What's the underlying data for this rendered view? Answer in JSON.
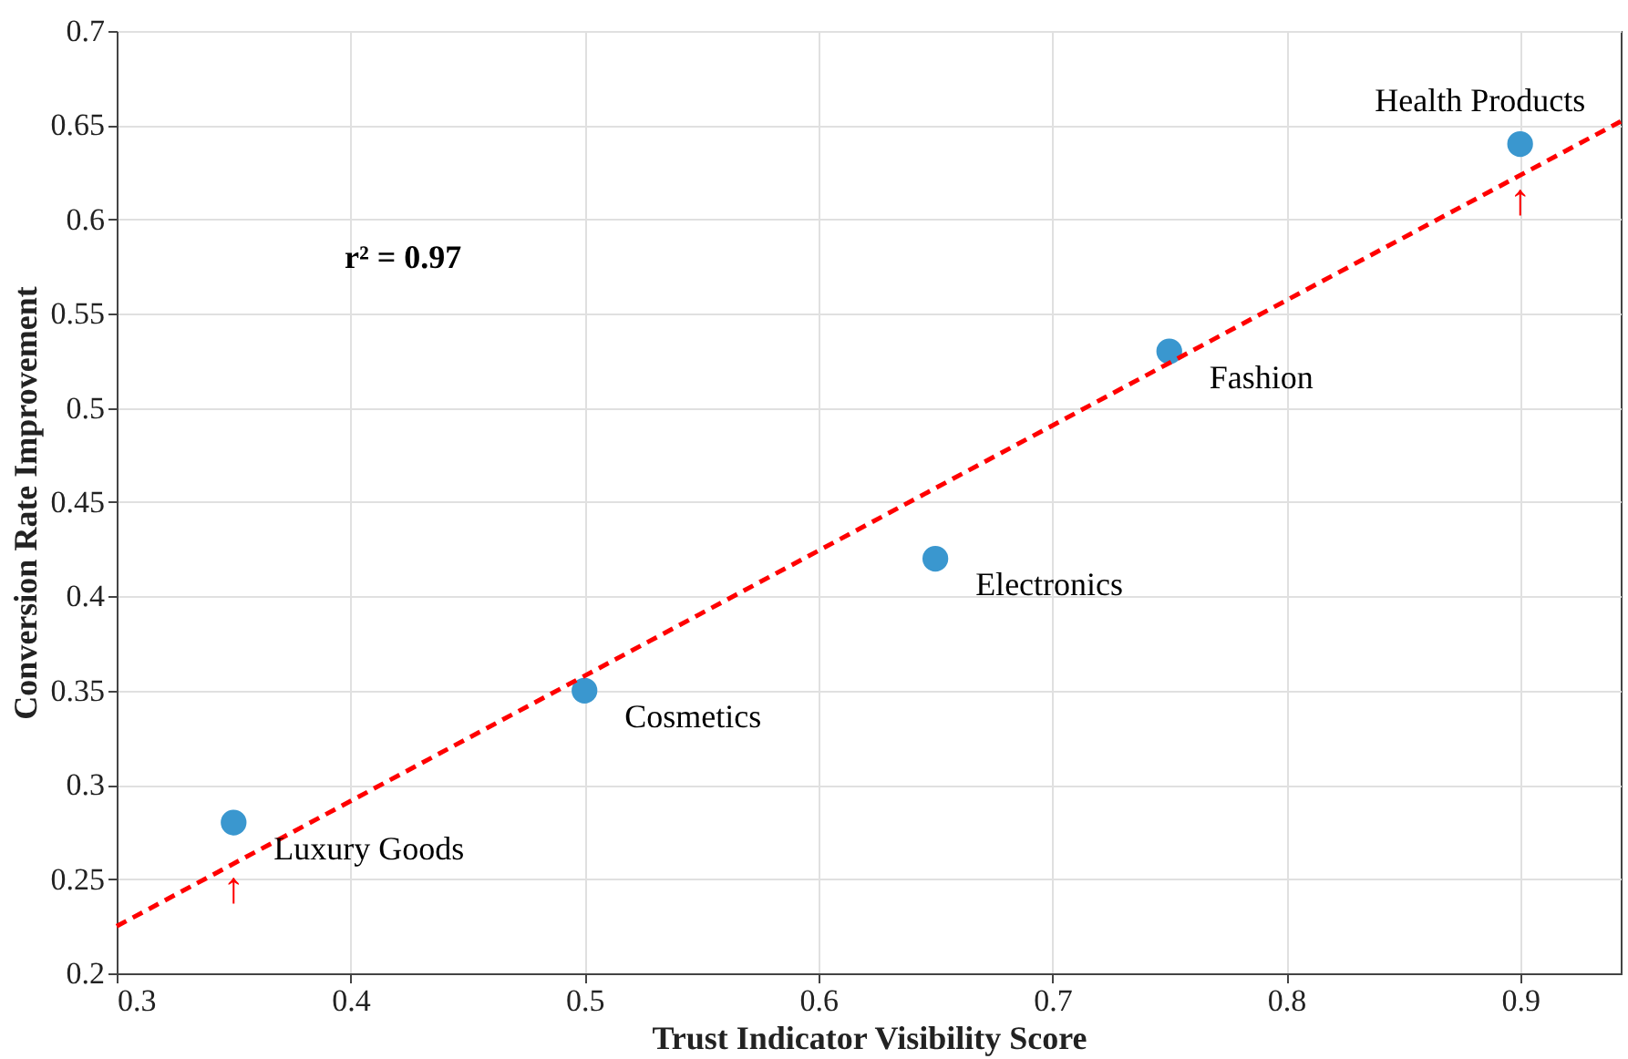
{
  "chart_data": {
    "type": "scatter",
    "xlabel": "Trust Indicator Visibility Score",
    "ylabel": "Conversion Rate Improvement",
    "x": [
      0.35,
      0.5,
      0.65,
      0.75,
      0.9
    ],
    "series": [
      {
        "color": "#3a97cf",
        "values": [
          0.28,
          0.35,
          0.42,
          0.53,
          0.64
        ]
      },
      {
        "type": "line",
        "color": "#ff0000",
        "line_style": "dashed",
        "marker": "none",
        "x": [
          0.3,
          0.943
        ],
        "values": [
          0.225,
          0.652
        ]
      }
    ],
    "annotations": [
      "r² = 0.97",
      {
        "text": "Luxury Goods",
        "x": 0.35,
        "y": 0.28
      },
      {
        "text": "Cosmetics",
        "x": 0.5,
        "y": 0.35
      },
      {
        "text": "Electronics",
        "x": 0.65,
        "y": 0.42
      },
      {
        "text": "Fashion",
        "x": 0.75,
        "y": 0.53
      },
      {
        "text": "Health Products",
        "x": 0.9,
        "y": 0.64
      },
      {
        "text": "↑",
        "x": 0.35,
        "y": 0.258
      },
      {
        "text": "↑",
        "x": 0.9,
        "y": 0.623
      }
    ],
    "xlim": [
      0.3,
      0.943
    ],
    "xticks": [
      0.3,
      0.4,
      0.5,
      0.6,
      0.7,
      0.8,
      0.9
    ],
    "ylim": [
      0.2,
      0.7
    ],
    "yticks": [
      0.2,
      0.25,
      0.3,
      0.35,
      0.4,
      0.45,
      0.5,
      0.55,
      0.6,
      0.65,
      0.7
    ],
    "grid": true,
    "marker": "circle"
  }
}
